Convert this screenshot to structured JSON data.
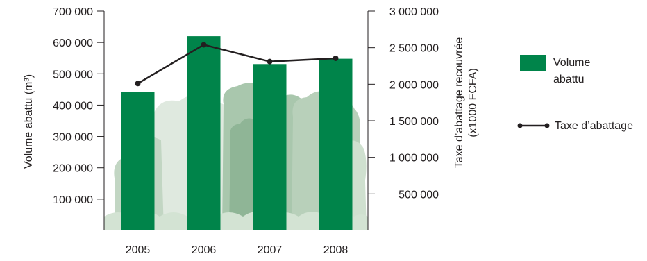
{
  "chart_data": {
    "type": "bar+line",
    "categories": [
      "2005",
      "2006",
      "2007",
      "2008"
    ],
    "series": [
      {
        "name": "Volume abattu",
        "kind": "bar",
        "axis": "left",
        "color": "#00844a",
        "values": [
          443000,
          620000,
          531000,
          548000
        ]
      },
      {
        "name": "Taxe d’abattage",
        "kind": "line",
        "axis": "right",
        "color": "#231f20",
        "values": [
          2010000,
          2540000,
          2310000,
          2355000
        ]
      }
    ],
    "left_axis": {
      "label": "Volume abattu (m³)",
      "range": [
        0,
        700000
      ],
      "ticks": [
        100000,
        200000,
        300000,
        400000,
        500000,
        600000,
        700000
      ],
      "tick_labels": [
        "100 000",
        "200 000",
        "300 000",
        "400 000",
        "500 000",
        "600 000",
        "700 000"
      ]
    },
    "right_axis": {
      "label_line1": "Taxe d’abattage recouvrée",
      "label_line2": "(x1000 FCFA)",
      "range": [
        0,
        3000000
      ],
      "ticks": [
        500000,
        1000000,
        1500000,
        2000000,
        2500000,
        3000000
      ],
      "tick_labels": [
        "500 000",
        "1 000 000",
        "1 500 000",
        "2 000 000",
        "2 500 000",
        "3 000 000"
      ]
    },
    "legend": {
      "placement": "right",
      "bar_label_line1": "Volume",
      "bar_label_line2": "abattu",
      "line_label": "Taxe d’abattage"
    },
    "background": "forest-illustration"
  }
}
